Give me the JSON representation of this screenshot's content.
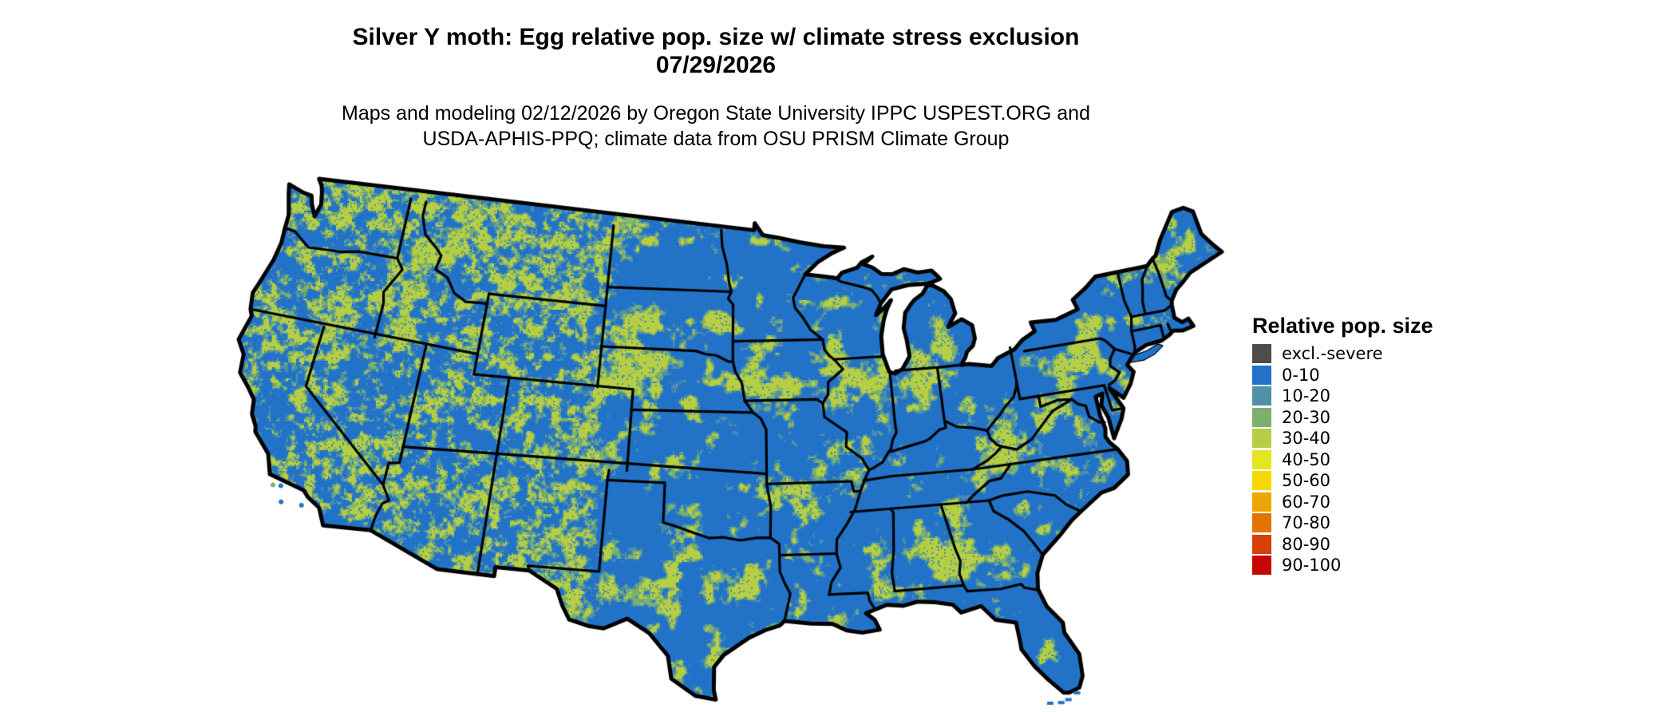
{
  "header": {
    "title_line1": "Silver Y moth: Egg relative pop. size w/ climate stress exclusion",
    "title_line2": "07/29/2026",
    "subtitle_line1": "Maps and modeling 02/12/2026 by Oregon State University IPPC USPEST.ORG and",
    "subtitle_line2": "USDA-APHIS-PPQ; climate data from OSU PRISM Climate Group"
  },
  "legend": {
    "title": "Relative pop. size",
    "items": [
      {
        "label": "excl.-severe",
        "color": "#4d4d4d"
      },
      {
        "label": "0-10",
        "color": "#2273c8"
      },
      {
        "label": "10-20",
        "color": "#4f91a5"
      },
      {
        "label": "20-30",
        "color": "#7bb06e"
      },
      {
        "label": "30-40",
        "color": "#b6ce43"
      },
      {
        "label": "40-50",
        "color": "#e4e71f"
      },
      {
        "label": "50-60",
        "color": "#f4d800"
      },
      {
        "label": "60-70",
        "color": "#eea604"
      },
      {
        "label": "70-80",
        "color": "#e27406"
      },
      {
        "label": "80-90",
        "color": "#d54009"
      },
      {
        "label": "90-100",
        "color": "#c60505"
      }
    ]
  },
  "chart_data": {
    "type": "heatmap",
    "title": "Silver Y moth: Egg relative pop. size w/ climate stress exclusion 07/29/2026",
    "region": "Contiguous United States",
    "legend_title": "Relative pop. size",
    "categories": [
      "excl.-severe",
      "0-10",
      "10-20",
      "20-30",
      "30-40",
      "40-50",
      "50-60",
      "60-70",
      "70-80",
      "80-90",
      "90-100"
    ],
    "dominant_category": "0-10",
    "visible_patch_categories": [
      "10-20",
      "20-30",
      "30-40"
    ],
    "background_color": "#ffffff",
    "boundary_color": "#000000"
  },
  "map": {
    "background": "#ffffff",
    "border_color": "#000000",
    "base_fill_category": "0-10"
  }
}
